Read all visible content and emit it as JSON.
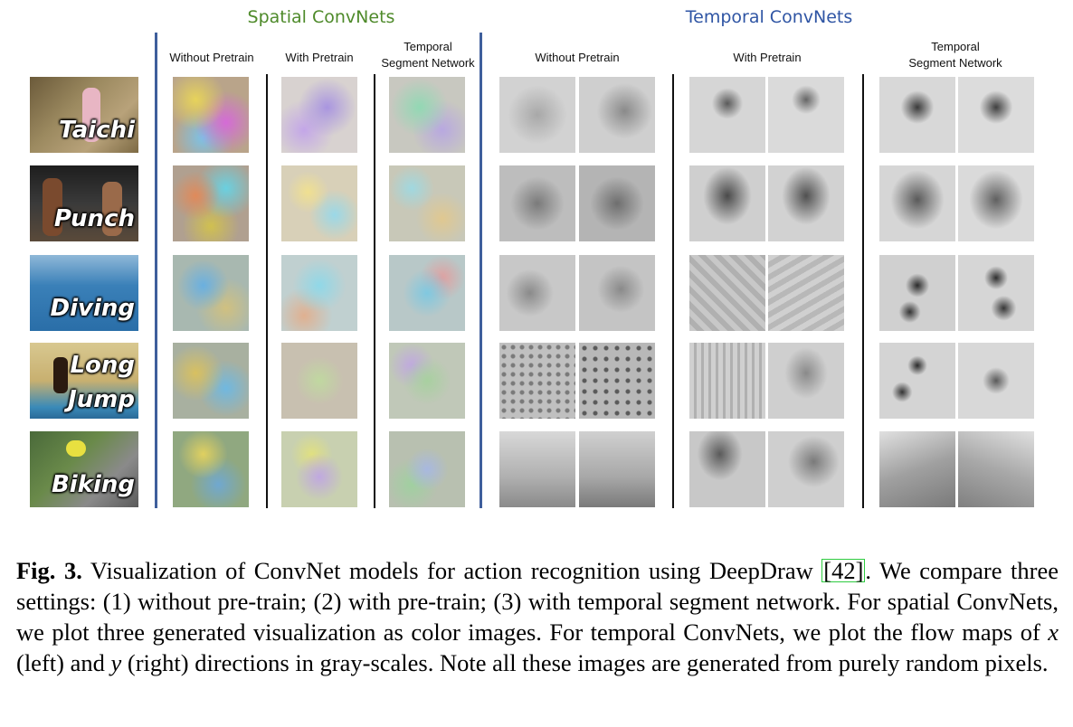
{
  "headers": {
    "spatial_title": "Spatial ConvNets",
    "temporal_title": "Temporal ConvNets",
    "spatial_cols": [
      "Without Pretrain",
      "With Pretrain",
      "Temporal\nSegment Network"
    ],
    "temporal_cols": [
      "Without Pretrain",
      "With Pretrain",
      "Temporal\nSegment Network"
    ]
  },
  "rows": [
    {
      "label": "Taichi"
    },
    {
      "label": "Punch"
    },
    {
      "label": "Diving"
    },
    {
      "label": "Long\nJump"
    },
    {
      "label": "Biking"
    }
  ],
  "caption": {
    "fig_label": "Fig. 3.",
    "part1": " Visualization of ConvNet models for action recognition using DeepDraw ",
    "cite": "[42]",
    "part2": ". We compare three settings: (1) without pre-train; (2) with pre-train; (3) with temporal segment network. For spatial ConvNets, we plot three generated visualization as color images. For temporal ConvNets, we plot the flow maps of ",
    "x": "x",
    "part3": " (left) and ",
    "y": "y",
    "part4": " (right) directions in gray-scales. Note all these images are generated from purely random pixels."
  },
  "colors": {
    "spatial_title": "#4e8a2a",
    "temporal_title": "#2f55a4",
    "divider_blue": "#3f5f9c",
    "cite_box": "#2ecc40"
  }
}
